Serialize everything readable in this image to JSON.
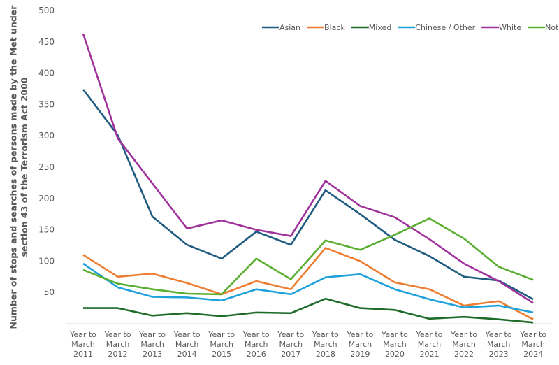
{
  "chart_data": {
    "type": "line",
    "title": "",
    "xlabel": "",
    "ylabel": "Number of stops and searches of persons made by the Met under section 43 of the Terrorism Act 2000",
    "categories": [
      [
        "Year to",
        "March",
        "2011"
      ],
      [
        "Year to",
        "March",
        "2012"
      ],
      [
        "Year to",
        "March",
        "2013"
      ],
      [
        "Year to",
        "March",
        "2014"
      ],
      [
        "Year to",
        "March",
        "2015"
      ],
      [
        "Year to",
        "March",
        "2016"
      ],
      [
        "Year to",
        "March",
        "2017"
      ],
      [
        "Year to",
        "March",
        "2018"
      ],
      [
        "Year to",
        "March",
        "2019"
      ],
      [
        "Year to",
        "March",
        "2020"
      ],
      [
        "Year to",
        "March",
        "2021"
      ],
      [
        "Year to",
        "March",
        "2022"
      ],
      [
        "Year to",
        "March",
        "2023"
      ],
      [
        "Year to",
        "March",
        "2024"
      ]
    ],
    "ylim": [
      0,
      500
    ],
    "yticks": [
      0,
      50,
      100,
      150,
      200,
      250,
      300,
      350,
      400,
      450,
      500
    ],
    "ytick_labels": [
      "-",
      "50",
      "100",
      "150",
      "200",
      "250",
      "300",
      "350",
      "400",
      "450",
      "500"
    ],
    "grid": false,
    "legend_position": "top-right",
    "series": [
      {
        "name": "Asian",
        "color": "#1f5c7f",
        "values": [
          374,
          301,
          171,
          126,
          104,
          147,
          126,
          213,
          175,
          134,
          108,
          75,
          69,
          39
        ]
      },
      {
        "name": "Black",
        "color": "#ed7d31",
        "values": [
          110,
          75,
          80,
          65,
          47,
          68,
          55,
          121,
          100,
          66,
          55,
          29,
          36,
          7
        ]
      },
      {
        "name": "Mixed",
        "color": "#1e6b2a",
        "values": [
          25,
          25,
          13,
          17,
          12,
          18,
          17,
          40,
          25,
          22,
          8,
          11,
          7,
          2
        ]
      },
      {
        "name": "Chinese / Other",
        "color": "#1fa2dc",
        "values": [
          96,
          58,
          43,
          42,
          37,
          55,
          47,
          74,
          79,
          55,
          39,
          26,
          29,
          18
        ]
      },
      {
        "name": "White",
        "color": "#a0329c",
        "values": [
          463,
          296,
          224,
          152,
          165,
          150,
          140,
          228,
          188,
          170,
          135,
          96,
          68,
          33
        ]
      },
      {
        "name": "Not stated",
        "color": "#5aaf32",
        "values": [
          86,
          64,
          55,
          48,
          47,
          104,
          71,
          133,
          118,
          142,
          168,
          136,
          91,
          70
        ]
      }
    ]
  }
}
